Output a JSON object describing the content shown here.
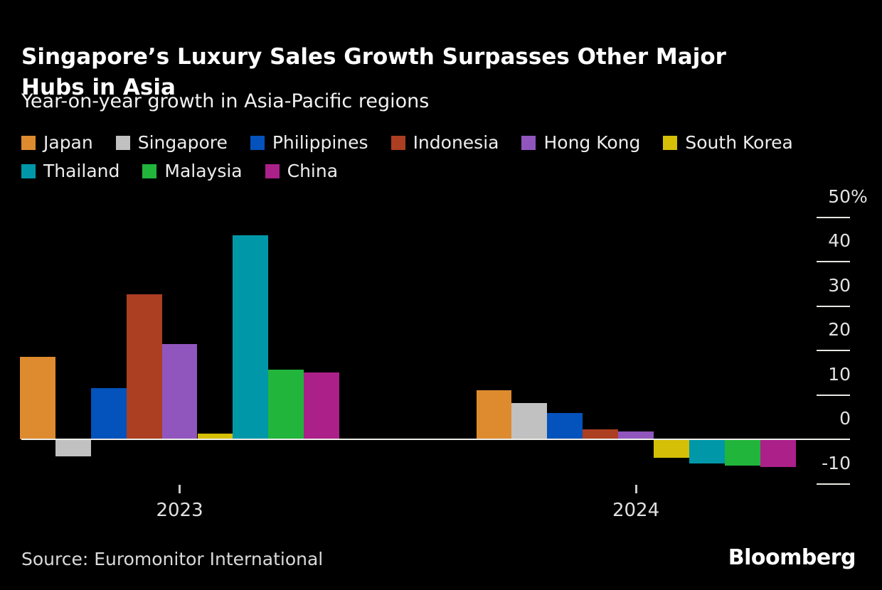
{
  "header": {
    "title_lines": [
      "Singapore’s Luxury Sales Growth Surpasses Other Major",
      "Hubs in Asia"
    ],
    "subtitle": "Year-on-year growth in Asia-Pacific regions"
  },
  "chart_data": {
    "type": "bar",
    "title": "Singapore’s Luxury Sales Growth Surpasses Other Major Hubs in Asia",
    "subtitle": "Year-on-year growth in Asia-Pacific regions",
    "categories": [
      "2023",
      "2024"
    ],
    "series": [
      {
        "name": "Japan",
        "color": "#DD8B2E",
        "values": [
          18.5,
          11.1
        ]
      },
      {
        "name": "Singapore",
        "color": "#C1C1C1",
        "values": [
          -3.8,
          8.1
        ]
      },
      {
        "name": "Philippines",
        "color": "#0452BB",
        "values": [
          11.6,
          6.0
        ]
      },
      {
        "name": "Indonesia",
        "color": "#AC3E21",
        "values": [
          32.7,
          2.3
        ]
      },
      {
        "name": "Hong Kong",
        "color": "#9156BE",
        "values": [
          21.4,
          1.8
        ]
      },
      {
        "name": "South Korea",
        "color": "#D5BF07",
        "values": [
          1.3,
          -4.2
        ]
      },
      {
        "name": "Thailand",
        "color": "#0098A9",
        "values": [
          46.0,
          -5.5
        ]
      },
      {
        "name": "Malaysia",
        "color": "#21B53C",
        "values": [
          15.7,
          -5.9
        ]
      },
      {
        "name": "China",
        "color": "#AC2089",
        "values": [
          15.0,
          -6.2
        ]
      }
    ],
    "ylabel": "",
    "ylim": [
      -13,
      52
    ],
    "yticks": [
      {
        "label": "50%",
        "value": 50
      },
      {
        "label": "40",
        "value": 40
      },
      {
        "label": "30",
        "value": 30
      },
      {
        "label": "20",
        "value": 20
      },
      {
        "label": "10",
        "value": 10
      },
      {
        "label": "0",
        "value": 0
      },
      {
        "label": "-10",
        "value": -10
      }
    ],
    "legend_position": "top",
    "grid": "right-side tick marks only, zero baseline across plot"
  },
  "footer": {
    "source": "Source: Euromonitor International",
    "brand": "Bloomberg"
  }
}
